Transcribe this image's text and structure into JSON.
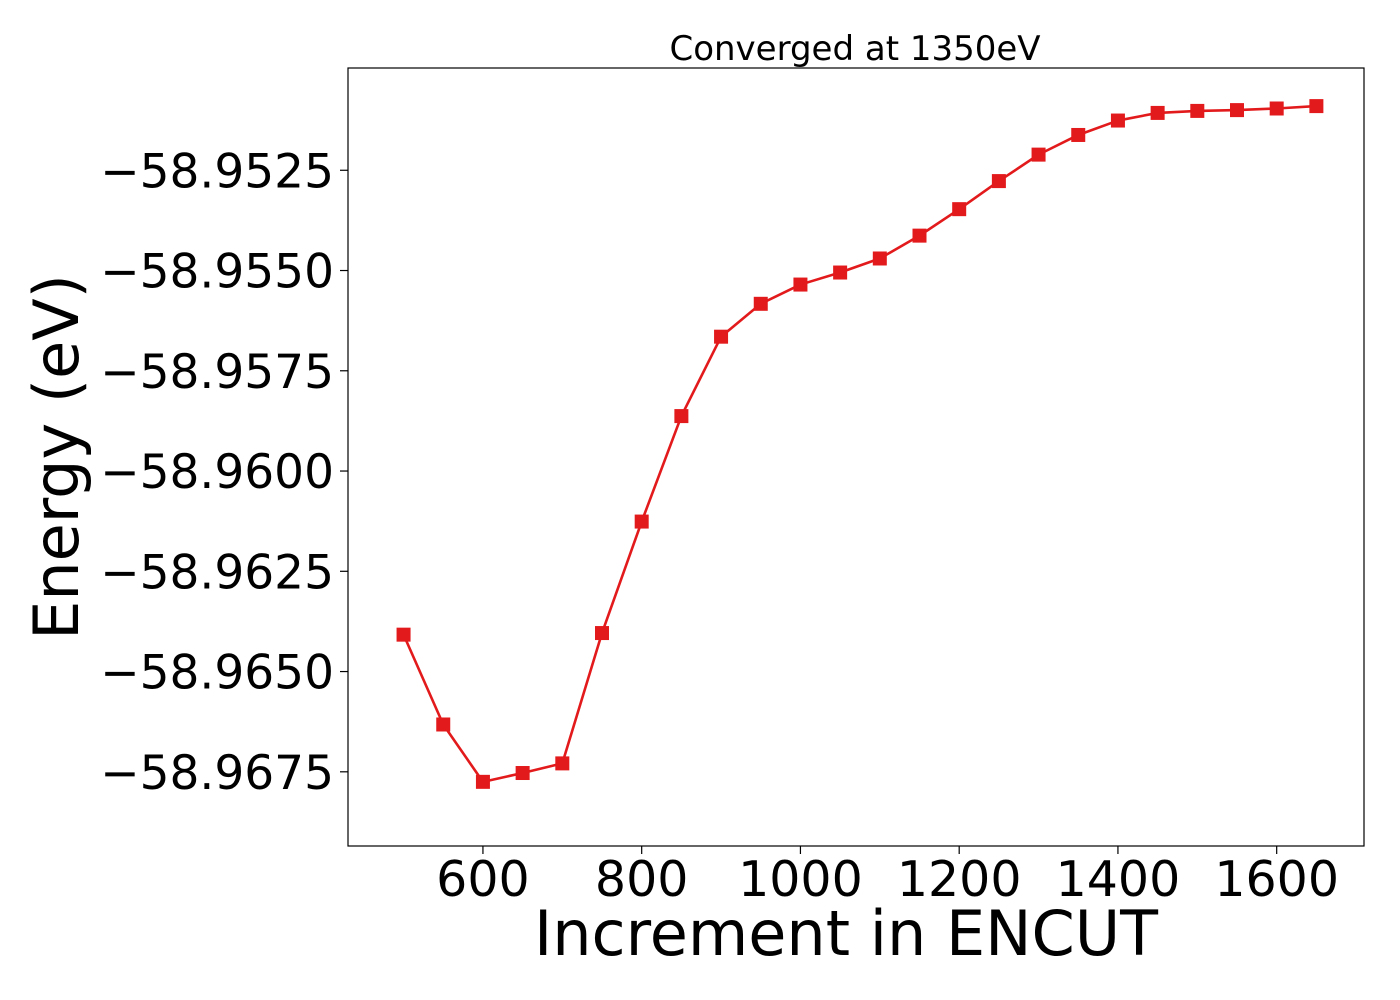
{
  "chart_data": {
    "type": "line",
    "title": "Converged at 1350eV",
    "xlabel": "Increment in ENCUT",
    "ylabel": "Energy (eV)",
    "xlim": [
      430,
      1710
    ],
    "ylim": [
      -58.96935,
      -58.94995
    ],
    "xticks": [
      600,
      800,
      1000,
      1200,
      1400,
      1600
    ],
    "xtick_labels": [
      "600",
      "800",
      "1000",
      "1200",
      "1400",
      "1600"
    ],
    "yticks": [
      -58.9675,
      -58.965,
      -58.9625,
      -58.96,
      -58.9575,
      -58.955,
      -58.9525
    ],
    "ytick_labels": [
      "−58.9675",
      "−58.9650",
      "−58.9625",
      "−58.9600",
      "−58.9575",
      "−58.9550",
      "−58.9525"
    ],
    "grid": false,
    "marker": "square",
    "color": "#e31a1c",
    "series": [
      {
        "x": [
          500,
          550,
          600,
          650,
          700,
          750,
          800,
          850,
          900,
          950,
          1000,
          1050,
          1100,
          1150,
          1200,
          1250,
          1300,
          1350,
          1400,
          1450,
          1500,
          1550,
          1600,
          1650
        ],
        "y": [
          -58.96408,
          -58.96632,
          -58.96775,
          -58.96753,
          -58.96729,
          -58.96404,
          -58.96126,
          -58.95863,
          -58.95665,
          -58.95583,
          -58.95535,
          -58.95505,
          -58.9547,
          -58.95413,
          -58.95347,
          -58.95277,
          -58.95211,
          -58.95162,
          -58.95126,
          -58.95107,
          -58.95102,
          -58.951,
          -58.95096,
          -58.9509
        ]
      }
    ]
  }
}
